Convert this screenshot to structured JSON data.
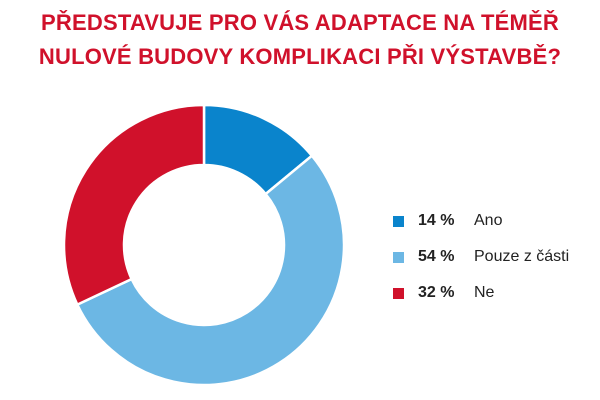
{
  "chart_data": {
    "type": "pie",
    "donut": true,
    "title_lines": [
      "PŘEDSTAVUJE PRO VÁS ADAPTACE NA TÉMĚŘ",
      "NULOVÉ BUDOVY KOMPLIKACI PŘI VÝSTAVBĚ?"
    ],
    "legend_position": "right",
    "slices": [
      {
        "label": "Ano",
        "value": 14,
        "value_label": "14 %",
        "color": "#0a84cc"
      },
      {
        "label": "Pouze z části",
        "value": 54,
        "value_label": "54 %",
        "color": "#6cb7e4"
      },
      {
        "label": "Ne",
        "value": 32,
        "value_label": "32 %",
        "color": "#d0112b"
      }
    ]
  }
}
